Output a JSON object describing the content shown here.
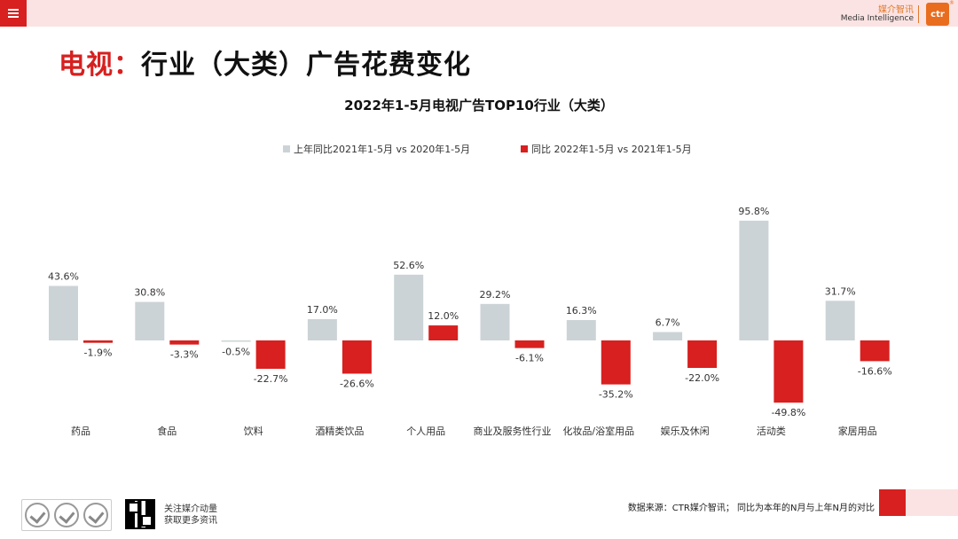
{
  "header": {
    "brand_cn": "媒介智讯",
    "brand_en": "Media Intelligence",
    "logo_text": "ctr",
    "logo_mark": "®"
  },
  "page_title": {
    "accent": "电视：",
    "rest": "行业（大类）广告花费变化"
  },
  "footer": {
    "follow_line1": "关注媒介动量",
    "follow_line2": "获取更多资讯",
    "source": "数据来源：CTR媒介智讯；  同比为本年的N月与上年N月的对比"
  },
  "colors": {
    "accent": "#d7201f",
    "gray_bar": "#ccd3d6",
    "header_bg": "#fbe3e3"
  },
  "chart_data": {
    "type": "bar",
    "title": "2022年1-5月电视广告TOP10行业（大类）",
    "legend_position": "top",
    "categories": [
      "药品",
      "食品",
      "饮料",
      "酒精类饮品",
      "个人用品",
      "商业及服务性行业",
      "化妆品/浴室用品",
      "娱乐及休闲",
      "活动类",
      "家居用品"
    ],
    "series": [
      {
        "name": "上年同比2021年1-5月  vs  2020年1-5月",
        "color": "#ccd3d6",
        "values": [
          43.6,
          30.8,
          -0.5,
          17.0,
          52.6,
          29.2,
          16.3,
          6.7,
          95.8,
          31.7
        ]
      },
      {
        "name": "同比 2022年1-5月  vs  2021年1-5月",
        "color": "#d7201f",
        "values": [
          -1.9,
          -3.3,
          -22.7,
          -26.6,
          12.0,
          -6.1,
          -35.2,
          -22.0,
          -49.8,
          -16.6
        ]
      }
    ],
    "value_labels": [
      [
        "43.6%",
        "30.8%",
        "-0.5%",
        "17.0%",
        "52.6%",
        "29.2%",
        "16.3%",
        "6.7%",
        "95.8%",
        "31.7%"
      ],
      [
        "-1.9%",
        "-3.3%",
        "-22.7%",
        "-26.6%",
        "12.0%",
        "-6.1%",
        "-35.2%",
        "-22.0%",
        "-49.8%",
        "-16.6%"
      ]
    ],
    "grid": false
  }
}
